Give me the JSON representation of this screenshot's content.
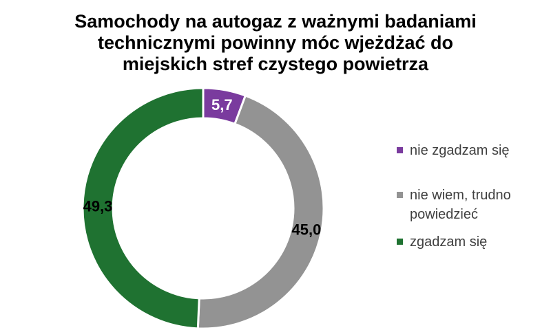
{
  "title_lines": [
    "Samochody na autogaz z ważnymi badaniami",
    "technicznymi powinny móc wjeżdżać do",
    "miejskich stref czystego powietrza"
  ],
  "chart_data": {
    "type": "pie",
    "subtype": "donut",
    "title": "Samochody na autogaz z ważnymi badaniami technicznymi powinny móc wjeżdżać do miejskich stref czystego powietrza",
    "categories": [
      "nie zgadzam się",
      "nie wiem, trudno powiedzieć",
      "zgadzam się"
    ],
    "values": [
      5.7,
      45.0,
      49.3
    ],
    "labels": [
      "5,7",
      "45,0",
      "49,3"
    ],
    "colors": [
      "#7A3B9E",
      "#939393",
      "#1F7231"
    ],
    "label_colors": [
      "#FFFFFF",
      "#000000",
      "#000000"
    ],
    "start_angle": 0,
    "direction": "clockwise",
    "donut_hole_ratio": 0.75,
    "slice_border_color": "#FFFFFF",
    "legend_position": "right",
    "units": "percent"
  }
}
